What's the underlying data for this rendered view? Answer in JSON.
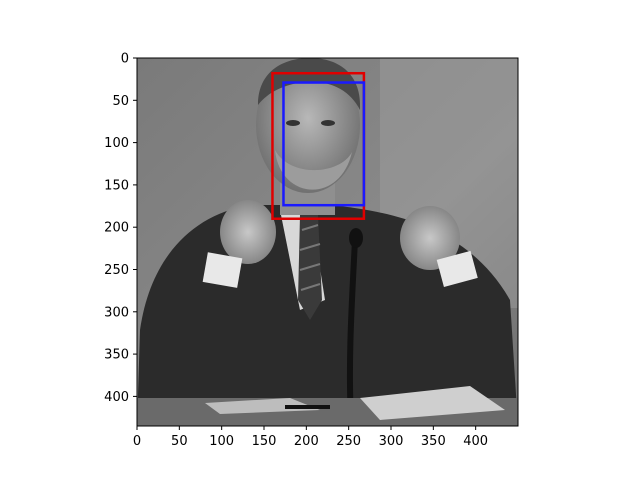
{
  "image": {
    "description_icon": "grayscale-portrait-photo-icon",
    "width_units": 450,
    "height_units": 435
  },
  "axes": {
    "x_ticks": [
      0,
      50,
      100,
      150,
      200,
      250,
      300,
      350,
      400
    ],
    "y_ticks": [
      0,
      50,
      100,
      150,
      200,
      250,
      300,
      350,
      400
    ],
    "x_range": [
      0,
      450
    ],
    "y_range": [
      0,
      435
    ]
  },
  "boxes": [
    {
      "name": "red-box",
      "color": "#e00000",
      "x0": 160,
      "y0": 18,
      "x1": 268,
      "y1": 190
    },
    {
      "name": "blue-box",
      "color": "#1a1aff",
      "x0": 173,
      "y0": 29,
      "x1": 268,
      "y1": 174
    }
  ]
}
